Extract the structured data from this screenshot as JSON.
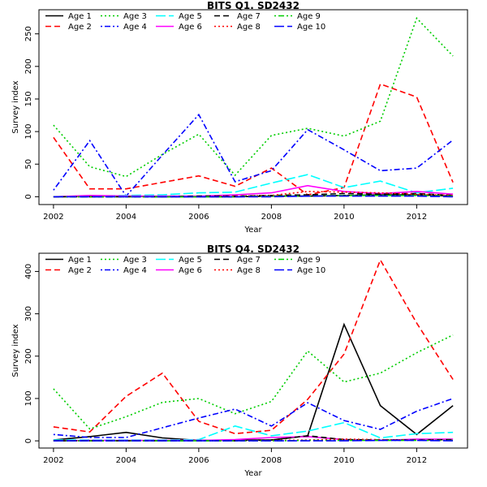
{
  "chart_data": [
    {
      "type": "line",
      "title": "BITS Q1. SD2432",
      "xlabel": "Year",
      "ylabel": "Survey index",
      "xlim": [
        2001.6,
        2013.4
      ],
      "ylim": [
        -12,
        287
      ],
      "xticks": [
        2002,
        2004,
        2006,
        2008,
        2010,
        2012
      ],
      "yticks": [
        0,
        50,
        100,
        150,
        200,
        250
      ],
      "x": [
        2002,
        2003,
        2004,
        2005,
        2006,
        2007,
        2008,
        2009,
        2010,
        2011,
        2012,
        2013
      ],
      "series": [
        {
          "name": "Age 1",
          "color": "#000000",
          "dash": "solid",
          "values": [
            0,
            1,
            1,
            0,
            0,
            0,
            1,
            1,
            2,
            3,
            3,
            1
          ]
        },
        {
          "name": "Age 2",
          "color": "#ff0000",
          "dash": "dashed",
          "values": [
            91,
            12,
            12,
            22,
            32,
            16,
            44,
            3,
            14,
            173,
            153,
            22
          ]
        },
        {
          "name": "Age 3",
          "color": "#00cd00",
          "dash": "dotted",
          "values": [
            110,
            46,
            31,
            65,
            96,
            33,
            94,
            105,
            93,
            116,
            274,
            216
          ]
        },
        {
          "name": "Age 4",
          "color": "#0000ff",
          "dash": "dotdash",
          "values": [
            10,
            86,
            1,
            64,
            126,
            23,
            40,
            103,
            72,
            40,
            44,
            87
          ]
        },
        {
          "name": "Age 5",
          "color": "#00ffff",
          "dash": "longdash",
          "values": [
            0,
            1,
            2,
            3,
            6,
            7,
            21,
            34,
            14,
            24,
            6,
            13
          ]
        },
        {
          "name": "Age 6",
          "color": "#ff00ff",
          "dash": "solid",
          "values": [
            0,
            2,
            1,
            1,
            1,
            3,
            6,
            17,
            8,
            5,
            8,
            4
          ]
        },
        {
          "name": "Age 7",
          "color": "#000000",
          "dash": "dashed",
          "values": [
            0,
            0,
            0,
            0,
            1,
            1,
            2,
            3,
            5,
            4,
            5,
            2
          ]
        },
        {
          "name": "Age 8",
          "color": "#ff0000",
          "dash": "dotted",
          "values": [
            0,
            0,
            0,
            0,
            0,
            1,
            2,
            8,
            7,
            6,
            4,
            2
          ]
        },
        {
          "name": "Age 9",
          "color": "#00cd00",
          "dash": "dotdash",
          "values": [
            0,
            0,
            0,
            0,
            0,
            0,
            1,
            1,
            2,
            2,
            2,
            1
          ]
        },
        {
          "name": "Age 10",
          "color": "#0000ff",
          "dash": "longdash",
          "values": [
            0,
            0,
            0,
            0,
            0,
            0,
            0,
            1,
            1,
            1,
            1,
            0
          ]
        }
      ]
    },
    {
      "type": "line",
      "title": "BITS Q4. SD2432",
      "xlabel": "Year",
      "ylabel": "Survey index",
      "xlim": [
        2001.6,
        2013.4
      ],
      "ylim": [
        -17,
        443
      ],
      "xticks": [
        2002,
        2004,
        2006,
        2008,
        2010,
        2012
      ],
      "yticks": [
        0,
        100,
        200,
        300,
        400
      ],
      "x": [
        2002,
        2003,
        2004,
        2005,
        2006,
        2007,
        2008,
        2009,
        2010,
        2011,
        2012,
        2013
      ],
      "series": [
        {
          "name": "Age 1",
          "color": "#000000",
          "dash": "solid",
          "values": [
            2,
            10,
            20,
            7,
            1,
            2,
            2,
            12,
            275,
            83,
            15,
            83
          ]
        },
        {
          "name": "Age 2",
          "color": "#ff0000",
          "dash": "dashed",
          "values": [
            33,
            21,
            105,
            160,
            46,
            17,
            25,
            98,
            205,
            427,
            278,
            145
          ]
        },
        {
          "name": "Age 3",
          "color": "#00cd00",
          "dash": "dotted",
          "values": [
            123,
            28,
            57,
            91,
            100,
            64,
            93,
            212,
            139,
            160,
            208,
            250
          ]
        },
        {
          "name": "Age 4",
          "color": "#0000ff",
          "dash": "dotdash",
          "values": [
            15,
            8,
            8,
            31,
            54,
            75,
            35,
            90,
            48,
            27,
            70,
            100
          ]
        },
        {
          "name": "Age 5",
          "color": "#00ffff",
          "dash": "longdash",
          "values": [
            2,
            2,
            2,
            2,
            3,
            35,
            12,
            23,
            43,
            7,
            17,
            20
          ]
        },
        {
          "name": "Age 6",
          "color": "#ff00ff",
          "dash": "solid",
          "values": [
            0,
            1,
            1,
            1,
            1,
            3,
            8,
            10,
            3,
            1,
            4,
            4
          ]
        },
        {
          "name": "Age 7",
          "color": "#000000",
          "dash": "dashed",
          "values": [
            0,
            0,
            0,
            0,
            0,
            0,
            2,
            12,
            3,
            2,
            2,
            3
          ]
        },
        {
          "name": "Age 8",
          "color": "#ff0000",
          "dash": "dotted",
          "values": [
            0,
            0,
            0,
            0,
            0,
            0,
            1,
            2,
            4,
            3,
            2,
            1
          ]
        },
        {
          "name": "Age 9",
          "color": "#00cd00",
          "dash": "dotdash",
          "values": [
            0,
            0,
            0,
            0,
            0,
            0,
            0,
            1,
            1,
            1,
            1,
            1
          ]
        },
        {
          "name": "Age 10",
          "color": "#0000ff",
          "dash": "longdash",
          "values": [
            0,
            0,
            0,
            0,
            0,
            0,
            0,
            0,
            0,
            1,
            1,
            0
          ]
        }
      ]
    }
  ]
}
